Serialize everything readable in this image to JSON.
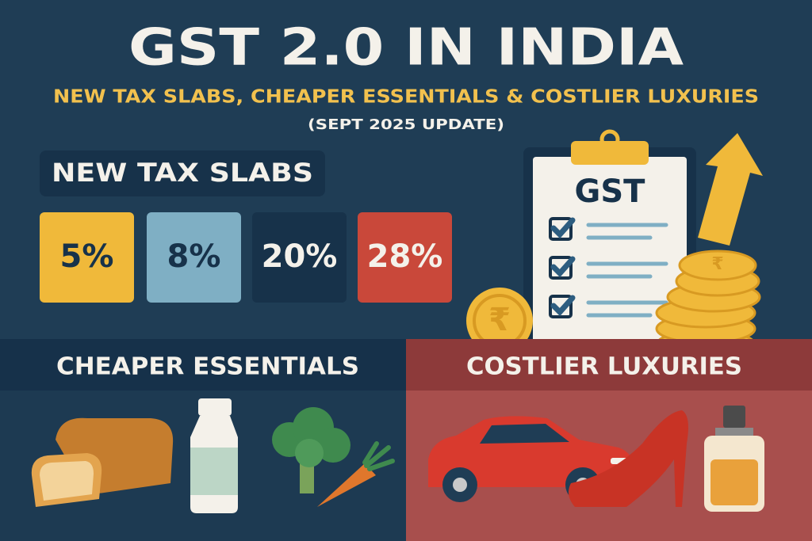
{
  "header": {
    "title": "GST 2.0 IN INDIA",
    "subtitle": "NEW TAX SLABS, CHEAPER ESSENTIALS & COSTLIER LUXURIES",
    "update": "(SEPT 2025 UPDATE)"
  },
  "tax_slabs": {
    "heading": "NEW TAX SLABS",
    "slabs": [
      "5%",
      "8%",
      "20%",
      "28%"
    ]
  },
  "illustration": {
    "clipboard_label": "GST",
    "coin_symbol": "₹"
  },
  "sections": [
    {
      "heading": "CHEAPER ESSENTIALS"
    },
    {
      "heading": "COSTLIER LUXURIES"
    }
  ]
}
